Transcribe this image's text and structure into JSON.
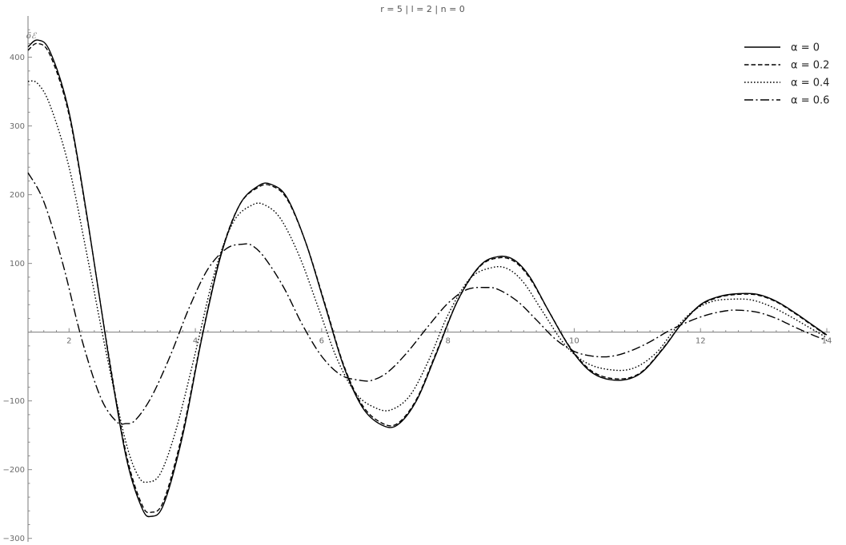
{
  "chart_data": {
    "type": "line",
    "title": "r = 5    |  l = 2  |  n = 0",
    "ylabel": "δℰ",
    "xlabel": "",
    "xlim": [
      1.35,
      14.0
    ],
    "ylim": [
      -305,
      460
    ],
    "x_ticks": [
      2,
      4,
      6,
      8,
      10,
      12,
      14
    ],
    "y_ticks": [
      -300,
      -200,
      -100,
      100,
      200,
      300,
      400
    ],
    "x_tick_labels": [
      "2",
      "4",
      "6",
      "8",
      "10",
      "12",
      "14"
    ],
    "y_tick_labels": [
      "−300",
      "−200",
      "−100",
      "100",
      "200",
      "300",
      "400"
    ],
    "grid": false,
    "legend_position": "top-right",
    "series": [
      {
        "name": "α = 0",
        "dash": "solid",
        "x": [
          1.35,
          1.5,
          1.7,
          2.0,
          2.3,
          2.6,
          2.9,
          3.15,
          3.3,
          3.5,
          3.8,
          4.1,
          4.4,
          4.7,
          5.0,
          5.2,
          5.45,
          5.75,
          6.05,
          6.35,
          6.65,
          6.95,
          7.2,
          7.5,
          7.8,
          8.15,
          8.5,
          8.8,
          9.05,
          9.3,
          9.6,
          9.95,
          10.3,
          10.7,
          11.05,
          11.4,
          11.7,
          12.0,
          12.3,
          12.6,
          12.9,
          13.2,
          13.5,
          13.75,
          14.0
        ],
        "values": [
          415,
          425,
          408,
          320,
          160,
          -20,
          -180,
          -255,
          -268,
          -250,
          -150,
          -10,
          110,
          185,
          213,
          215,
          196,
          130,
          40,
          -50,
          -110,
          -135,
          -135,
          -100,
          -35,
          45,
          96,
          110,
          105,
          80,
          30,
          -25,
          -60,
          -70,
          -60,
          -25,
          12,
          40,
          52,
          56,
          55,
          45,
          28,
          12,
          -4
        ]
      },
      {
        "name": "α = 0.2",
        "dash": "dashed",
        "x": [
          1.35,
          1.5,
          1.7,
          2.0,
          2.3,
          2.6,
          2.9,
          3.15,
          3.3,
          3.5,
          3.8,
          4.1,
          4.4,
          4.7,
          5.0,
          5.2,
          5.45,
          5.75,
          6.05,
          6.35,
          6.65,
          6.95,
          7.2,
          7.5,
          7.8,
          8.15,
          8.5,
          8.8,
          9.05,
          9.3,
          9.6,
          9.95,
          10.3,
          10.7,
          11.05,
          11.4,
          11.7,
          12.0,
          12.3,
          12.6,
          12.9,
          13.2,
          13.5,
          13.75,
          14.0
        ],
        "values": [
          410,
          420,
          403,
          316,
          158,
          -18,
          -175,
          -250,
          -262,
          -245,
          -145,
          -8,
          112,
          185,
          211,
          213,
          194,
          130,
          42,
          -48,
          -107,
          -132,
          -133,
          -98,
          -33,
          45,
          95,
          108,
          103,
          78,
          30,
          -24,
          -58,
          -68,
          -59,
          -24,
          12,
          39,
          51,
          55,
          54,
          44,
          27,
          11,
          -5
        ]
      },
      {
        "name": "α = 0.4",
        "dash": "dotted",
        "x": [
          1.35,
          1.5,
          1.7,
          2.0,
          2.3,
          2.6,
          2.9,
          3.1,
          3.25,
          3.45,
          3.7,
          4.0,
          4.3,
          4.6,
          4.9,
          5.1,
          5.35,
          5.65,
          5.95,
          6.25,
          6.55,
          6.85,
          7.1,
          7.4,
          7.7,
          8.0,
          8.35,
          8.7,
          8.95,
          9.2,
          9.5,
          9.85,
          10.2,
          10.6,
          10.95,
          11.3,
          11.6,
          11.9,
          12.2,
          12.5,
          12.8,
          13.1,
          13.4,
          13.7,
          14.0
        ],
        "values": [
          365,
          362,
          330,
          240,
          105,
          -35,
          -160,
          -210,
          -218,
          -205,
          -140,
          -30,
          85,
          160,
          185,
          185,
          165,
          110,
          35,
          -40,
          -90,
          -110,
          -113,
          -92,
          -40,
          25,
          78,
          94,
          92,
          72,
          30,
          -18,
          -45,
          -55,
          -52,
          -30,
          5,
          32,
          45,
          48,
          47,
          38,
          24,
          8,
          -8
        ]
      },
      {
        "name": "α = 0.6",
        "dash": "dashdot",
        "x": [
          1.35,
          1.6,
          1.9,
          2.2,
          2.5,
          2.75,
          2.9,
          3.05,
          3.3,
          3.6,
          3.9,
          4.2,
          4.5,
          4.75,
          4.9,
          5.1,
          5.4,
          5.7,
          6.0,
          6.3,
          6.6,
          6.8,
          7.05,
          7.35,
          7.7,
          8.0,
          8.3,
          8.6,
          8.8,
          9.1,
          9.4,
          9.7,
          10.0,
          10.3,
          10.6,
          10.9,
          11.2,
          11.5,
          11.8,
          12.1,
          12.4,
          12.6,
          12.9,
          13.2,
          13.5,
          13.8,
          14.0
        ],
        "values": [
          232,
          190,
          100,
          -10,
          -95,
          -130,
          -133,
          -128,
          -95,
          -35,
          35,
          92,
          122,
          128,
          126,
          108,
          65,
          10,
          -35,
          -62,
          -70,
          -70,
          -58,
          -30,
          10,
          42,
          62,
          65,
          62,
          45,
          18,
          -10,
          -28,
          -35,
          -35,
          -27,
          -14,
          2,
          15,
          25,
          31,
          32,
          29,
          20,
          7,
          -5,
          -12
        ]
      }
    ]
  }
}
